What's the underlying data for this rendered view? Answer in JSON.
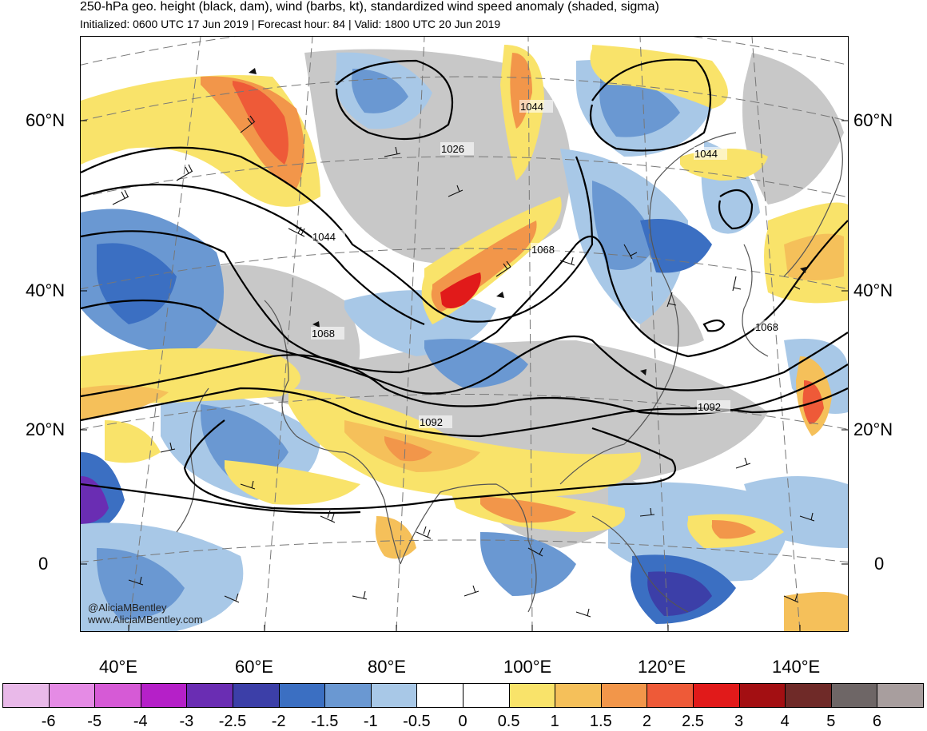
{
  "title": "250-hPa geo. height (black, dam), wind (barbs, kt), standardized wind speed anomaly (shaded, sigma)",
  "subtitle": "Initialized: 0600 UTC 17 Jun 2019 | Forecast hour: 84 | Valid: 1800 UTC 20 Jun 2019",
  "lat_labels": [
    "60°N",
    "40°N",
    "20°N",
    "0"
  ],
  "lon_labels": [
    "40°E",
    "60°E",
    "80°E",
    "100°E",
    "120°E",
    "140°E"
  ],
  "contour_labels": [
    "1026",
    "1044",
    "1044",
    "1044",
    "1068",
    "1068",
    "1068",
    "1092",
    "1092"
  ],
  "credit": {
    "twitter": "@AliciaMBentley",
    "website": "www.AliciaMBentley.com"
  },
  "colorbar": {
    "labels": [
      "-6",
      "-5",
      "-4",
      "-3",
      "-2.5",
      "-2",
      "-1.5",
      "-1",
      "-0.5",
      "0",
      "0.5",
      "1",
      "1.5",
      "2",
      "2.5",
      "3",
      "4",
      "5",
      "6"
    ],
    "colors": [
      "#e9b9e9",
      "#e58be5",
      "#d65ad6",
      "#b520c8",
      "#6a2db3",
      "#3c3fa8",
      "#3b6fc2",
      "#6a98d2",
      "#a8c8e7",
      "#ffffff",
      "#ffffff",
      "#f9e36a",
      "#f5c05a",
      "#f2964a",
      "#ee5a38",
      "#e11a1a",
      "#a30f12",
      "#6f2a28",
      "#6e6666",
      "#a89e9e"
    ]
  },
  "colors": {
    "land_neutral": "#c8c8c8",
    "negative_anomaly": "#6a98d2",
    "positive_anomaly": "#f5c05a",
    "contour": "#000000",
    "coast": "#555555"
  }
}
